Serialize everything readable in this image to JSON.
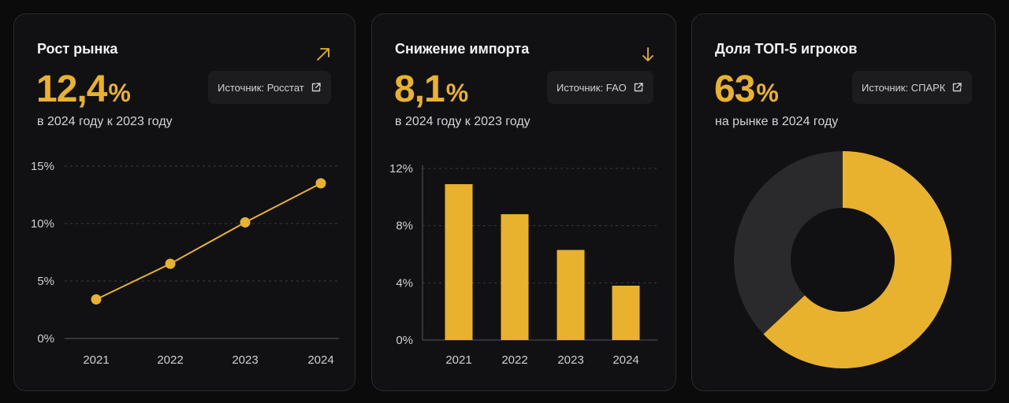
{
  "colors": {
    "accent": "#e8b22f",
    "background": "#0b0b0c",
    "card": "#111113",
    "muted_slice": "#2a2a2c"
  },
  "cards": [
    {
      "title": "Рост рынка",
      "value": "12,4",
      "unit": "%",
      "subtitle": "в 2024 году к 2023 году",
      "source_label": "Источник: Росстат",
      "trend_icon": "arrow-up-right-icon"
    },
    {
      "title": "Снижение импорта",
      "value": "8,1",
      "unit": "%",
      "subtitle": "в 2024 году к 2023 году",
      "source_label": "Источник: FAO",
      "trend_icon": "arrow-down-icon"
    },
    {
      "title": "Доля ТОП-5 игроков",
      "value": "63",
      "unit": "%",
      "subtitle": "на рынке в 2024 году",
      "source_label": "Источник: СПАРК"
    }
  ],
  "chart_data": [
    {
      "type": "line",
      "categories": [
        "2021",
        "2022",
        "2023",
        "2024"
      ],
      "series": [
        {
          "values": [
            3.4,
            6.5,
            10.1,
            13.5
          ]
        }
      ],
      "ylim": [
        0,
        15
      ],
      "yticks": [
        "0%",
        "5%",
        "10%",
        "15%"
      ],
      "grid": true
    },
    {
      "type": "bar",
      "categories": [
        "2021",
        "2022",
        "2023",
        "2024"
      ],
      "values": [
        10.9,
        8.8,
        6.3,
        3.8
      ],
      "ylim": [
        0,
        12
      ],
      "yticks": [
        "0%",
        "4%",
        "8%",
        "12%"
      ],
      "grid": true
    },
    {
      "type": "pie",
      "donut": true,
      "slices": [
        {
          "value": 63,
          "color": "#e8b22f"
        },
        {
          "value": 37,
          "color": "#2a2a2c"
        }
      ]
    }
  ]
}
